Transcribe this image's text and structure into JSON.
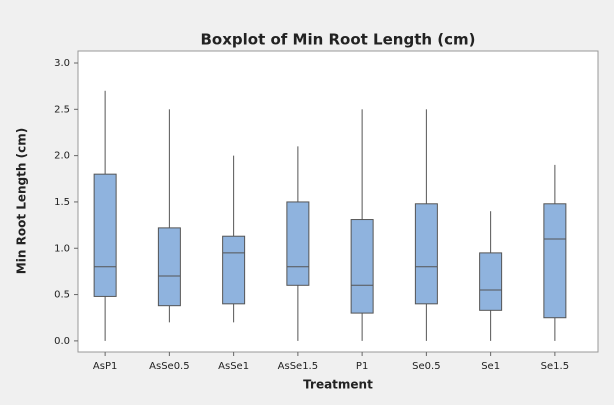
{
  "chart_data": {
    "type": "box",
    "title": "Boxplot of Min Root Length (cm)",
    "x_label": "Treatment",
    "y_label": "Min Root Length (cm)",
    "categories": [
      "AsP1",
      "AsSe0.5",
      "AsSe1",
      "AsSe1.5",
      "P1",
      "Se0.5",
      "Se1",
      "Se1.5"
    ],
    "min": [
      0.0,
      0.2,
      0.2,
      0.0,
      0.0,
      0.0,
      0.0,
      0.0
    ],
    "q1": [
      0.48,
      0.38,
      0.4,
      0.6,
      0.3,
      0.4,
      0.33,
      0.25
    ],
    "median": [
      0.8,
      0.7,
      0.95,
      0.8,
      0.6,
      0.8,
      0.55,
      1.1
    ],
    "q3": [
      1.8,
      1.22,
      1.13,
      1.5,
      1.31,
      1.48,
      0.95,
      1.48
    ],
    "max": [
      2.7,
      2.5,
      2.0,
      2.1,
      2.5,
      2.5,
      1.4,
      1.9
    ],
    "color": "#8fb3de",
    "ylim": [
      -0.12,
      3.0
    ],
    "yticks": [
      {
        "value": 0,
        "label": "0.0"
      },
      0.5,
      {
        "value": 1,
        "label": "1.0"
      },
      1.5,
      {
        "value": 2,
        "label": "2.0"
      },
      2.5,
      {
        "value": 3,
        "label": "3.0"
      }
    ]
  }
}
